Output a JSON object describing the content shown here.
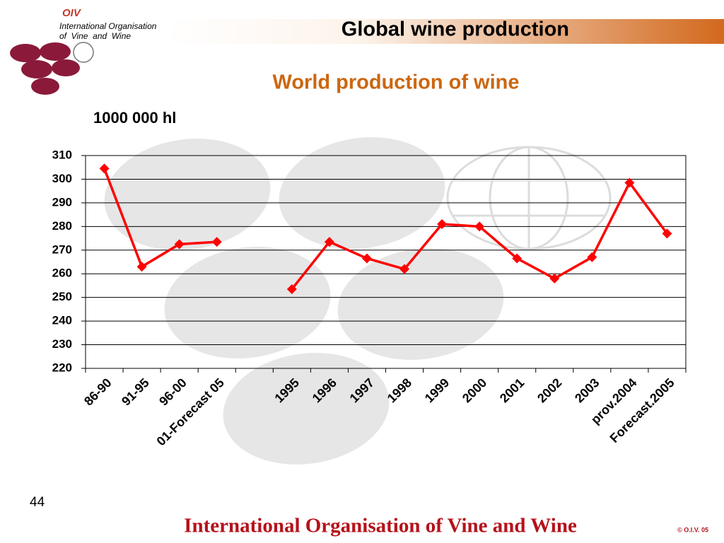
{
  "header": {
    "logo": "OIV",
    "org_line1": "International Organisation",
    "org_line2": "of  Vine  and  Wine",
    "title": "Global wine production"
  },
  "chart_data": {
    "type": "line",
    "title": "World production of wine",
    "y_label": "1000 000 hl",
    "categories": [
      "86-90",
      "91-95",
      "96-00",
      "01-Forecast 05",
      null,
      "1995",
      "1996",
      "1997",
      "1998",
      "1999",
      "2000",
      "2001",
      "2002",
      "2003",
      "prov.2004",
      "Forecast.2005"
    ],
    "series": [
      {
        "name": "World production",
        "color": "#ff0000",
        "values": [
          304.5,
          263,
          272.5,
          273.5,
          null,
          253.5,
          273.5,
          266.5,
          262,
          281,
          280,
          266.5,
          258,
          267,
          298.5,
          277
        ]
      }
    ],
    "ylim": [
      220,
      310
    ],
    "yticks": [
      220,
      230,
      240,
      250,
      260,
      270,
      280,
      290,
      300,
      310
    ],
    "grid": true
  },
  "footer": {
    "page": "44",
    "text": "International Organisation of Vine and Wine",
    "copyright": "© O.I.V. 05"
  }
}
